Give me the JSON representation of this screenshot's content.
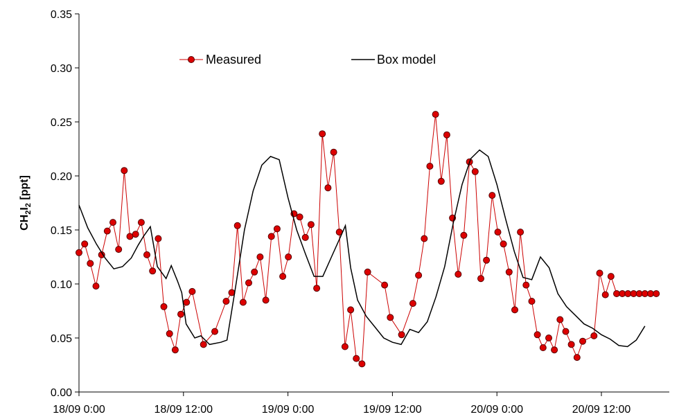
{
  "chart_data": {
    "type": "line",
    "title": "",
    "ylabel_parts": [
      "CH",
      "2",
      "I",
      "2",
      " [ppt]"
    ],
    "ylim": [
      0,
      0.35
    ],
    "yticks": [
      0.0,
      0.05,
      0.1,
      0.15,
      0.2,
      0.25,
      0.3,
      0.35
    ],
    "ytick_labels": [
      "0.00",
      "0.05",
      "0.10",
      "0.15",
      "0.20",
      "0.25",
      "0.30",
      "0.35"
    ],
    "xlim_hours": [
      0,
      67.5
    ],
    "xticks_hours": [
      0,
      12,
      24,
      36,
      48,
      60
    ],
    "xtick_labels": [
      "18/09 0:00",
      "18/09 12:00",
      "19/09 0:00",
      "19/09 12:00",
      "20/09 0:00",
      "20/09 12:00"
    ],
    "legend_placement": "top",
    "series": [
      {
        "name": "Measured",
        "color": "#cc0000",
        "marker": "circle",
        "x": [
          0.0,
          0.65,
          1.3,
          1.95,
          2.6,
          3.25,
          3.9,
          4.55,
          5.2,
          5.85,
          6.5,
          7.15,
          7.8,
          8.45,
          9.1,
          9.75,
          10.4,
          11.05,
          11.7,
          12.35,
          13.0,
          14.3,
          15.6,
          16.9,
          17.55,
          18.2,
          18.85,
          19.5,
          20.15,
          20.8,
          21.45,
          22.1,
          22.75,
          23.4,
          24.05,
          24.7,
          25.35,
          26.0,
          26.65,
          27.3,
          27.95,
          28.6,
          29.25,
          29.9,
          30.55,
          31.2,
          31.85,
          32.5,
          33.15,
          35.1,
          35.75,
          37.05,
          38.35,
          39.0,
          39.65,
          40.3,
          40.95,
          41.6,
          42.25,
          42.9,
          43.55,
          44.2,
          44.85,
          45.5,
          46.15,
          46.8,
          47.45,
          48.1,
          48.75,
          49.4,
          50.05,
          50.7,
          51.35,
          52.0,
          52.65,
          53.3,
          53.95,
          54.6,
          55.25,
          55.9,
          56.55,
          57.2,
          57.85,
          59.15,
          59.8,
          60.45,
          61.1,
          61.75,
          62.4,
          63.05,
          63.7,
          64.35,
          65.0,
          65.65,
          66.3
        ],
        "y": [
          0.129,
          0.137,
          0.119,
          0.098,
          0.127,
          0.149,
          0.157,
          0.132,
          0.205,
          0.144,
          0.146,
          0.157,
          0.127,
          0.112,
          0.142,
          0.079,
          0.054,
          0.039,
          0.072,
          0.083,
          0.093,
          0.044,
          0.056,
          0.084,
          0.092,
          0.154,
          0.083,
          0.101,
          0.111,
          0.125,
          0.085,
          0.144,
          0.151,
          0.107,
          0.125,
          0.165,
          0.162,
          0.143,
          0.155,
          0.096,
          0.239,
          0.189,
          0.222,
          0.148,
          0.042,
          0.076,
          0.031,
          0.026,
          0.111,
          0.099,
          0.069,
          0.053,
          0.082,
          0.108,
          0.142,
          0.209,
          0.257,
          0.195,
          0.238,
          0.161,
          0.109,
          0.145,
          0.213,
          0.204,
          0.105,
          0.122,
          0.182,
          0.148,
          0.137,
          0.111,
          0.076,
          0.148,
          0.099,
          0.084,
          0.053,
          0.041,
          0.05,
          0.039,
          0.067,
          0.056,
          0.044,
          0.032,
          0.047,
          0.052,
          0.11,
          0.09,
          0.107,
          0.091,
          0.091,
          0.091,
          0.091,
          0.091,
          0.091,
          0.091,
          0.091
        ]
      },
      {
        "name": "Box model",
        "color": "#000000",
        "marker": "none",
        "x": [
          0.0,
          1.0,
          2.0,
          3.0,
          4.0,
          5.0,
          6.0,
          6.8,
          7.4,
          8.2,
          9.0,
          10.0,
          10.6,
          11.3,
          11.8,
          12.3,
          13.3,
          14.0,
          15.0,
          16.3,
          17.0,
          18.0,
          19.0,
          20.0,
          21.0,
          22.0,
          23.0,
          24.0,
          25.0,
          26.0,
          27.0,
          28.0,
          29.0,
          30.0,
          30.6,
          31.2,
          32.0,
          33.0,
          34.0,
          35.0,
          36.0,
          37.0,
          38.0,
          39.0,
          40.0,
          41.0,
          42.0,
          43.0,
          44.0,
          45.0,
          46.0,
          47.0,
          48.0,
          49.0,
          50.0,
          51.0,
          52.0,
          53.0,
          54.0,
          55.0,
          56.0,
          57.0,
          58.0,
          59.0,
          60.0,
          61.0,
          62.0,
          63.0,
          64.0,
          65.0
        ],
        "y": [
          0.173,
          0.152,
          0.137,
          0.124,
          0.114,
          0.116,
          0.124,
          0.136,
          0.144,
          0.153,
          0.116,
          0.105,
          0.117,
          0.103,
          0.092,
          0.063,
          0.05,
          0.052,
          0.044,
          0.046,
          0.048,
          0.098,
          0.15,
          0.186,
          0.21,
          0.218,
          0.215,
          0.18,
          0.15,
          0.128,
          0.107,
          0.107,
          0.125,
          0.143,
          0.154,
          0.115,
          0.085,
          0.07,
          0.06,
          0.05,
          0.046,
          0.044,
          0.058,
          0.055,
          0.065,
          0.088,
          0.116,
          0.157,
          0.192,
          0.216,
          0.224,
          0.218,
          0.192,
          0.16,
          0.13,
          0.106,
          0.104,
          0.125,
          0.115,
          0.091,
          0.079,
          0.071,
          0.063,
          0.059,
          0.053,
          0.049,
          0.043,
          0.042,
          0.048,
          0.061
        ]
      }
    ]
  }
}
